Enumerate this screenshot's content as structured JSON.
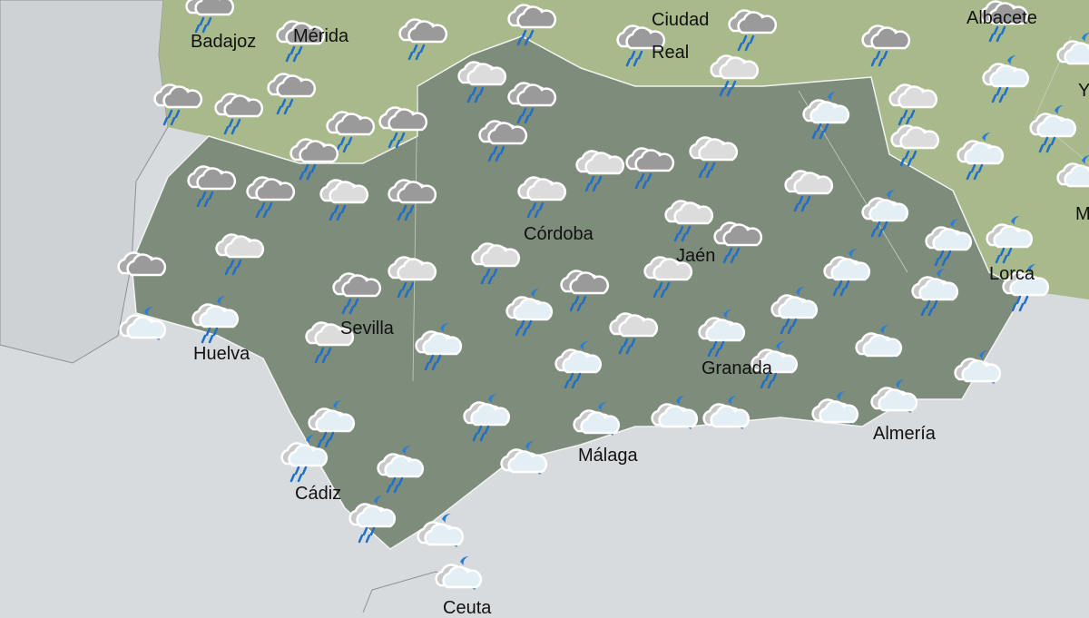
{
  "map": {
    "colors": {
      "sea": "#d8dbdd",
      "outer_land": "#a8b98b",
      "region": "#7e8c7b",
      "border": "#ffffff",
      "rain": "#1f6fc9",
      "moon": "#2a7fd4"
    },
    "cities": [
      {
        "id": "badajoz",
        "name": "Badajoz"
      },
      {
        "id": "merida",
        "name": "Mérida"
      },
      {
        "id": "ciudad-real-1",
        "name": "Ciudad"
      },
      {
        "id": "ciudad-real-2",
        "name": "Real"
      },
      {
        "id": "albacete",
        "name": "Albacete"
      },
      {
        "id": "cordoba",
        "name": "Córdoba"
      },
      {
        "id": "jaen",
        "name": "Jaén"
      },
      {
        "id": "sevilla",
        "name": "Sevilla"
      },
      {
        "id": "huelva",
        "name": "Huelva"
      },
      {
        "id": "granada",
        "name": "Granada"
      },
      {
        "id": "malaga",
        "name": "Málaga"
      },
      {
        "id": "almeria",
        "name": "Almería"
      },
      {
        "id": "cadiz",
        "name": "Cádiz"
      },
      {
        "id": "ceuta",
        "name": "Ceuta"
      },
      {
        "id": "lorca",
        "name": "Lorca"
      },
      {
        "id": "yecla",
        "name": "Y"
      },
      {
        "id": "murcia",
        "name": "M"
      }
    ],
    "icon_types": [
      "heavy-rain-cloud-icon",
      "rain-cloud-icon",
      "overcast-cloud-icon",
      "night-showers-icon",
      "night-cloudy-icon"
    ]
  }
}
